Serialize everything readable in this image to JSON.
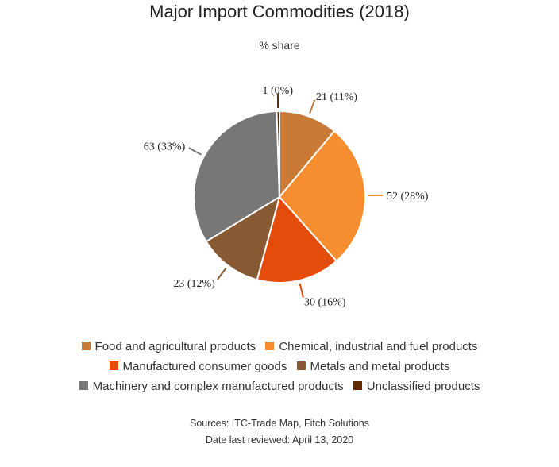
{
  "chart_data": {
    "type": "pie",
    "title": "Major Import Commodities (2018)",
    "subtitle": "% share",
    "slices": [
      {
        "name": "Food and agricultural products",
        "value": 21,
        "percent": 11,
        "label": "21 (11%)",
        "color": "#c87a36"
      },
      {
        "name": "Chemical, industrial and fuel products",
        "value": 52,
        "percent": 28,
        "label": "52 (28%)",
        "color": "#f68e2f"
      },
      {
        "name": "Manufactured consumer goods",
        "value": 30,
        "percent": 16,
        "label": "30 (16%)",
        "color": "#e44c0c"
      },
      {
        "name": "Metals and metal products",
        "value": 23,
        "percent": 12,
        "label": "23 (12%)",
        "color": "#885a33"
      },
      {
        "name": "Machinery and complex manufactured products",
        "value": 63,
        "percent": 33,
        "label": "63 (33%)",
        "color": "#777777"
      },
      {
        "name": "Unclassified products",
        "value": 1,
        "percent": 0,
        "label": "1 (0%)",
        "color": "#5c2b00"
      }
    ],
    "legend_position": "bottom"
  },
  "source": {
    "line1": "Sources: ITC-Trade Map, Fitch Solutions",
    "line2": "Date last reviewed: April 13, 2020"
  }
}
